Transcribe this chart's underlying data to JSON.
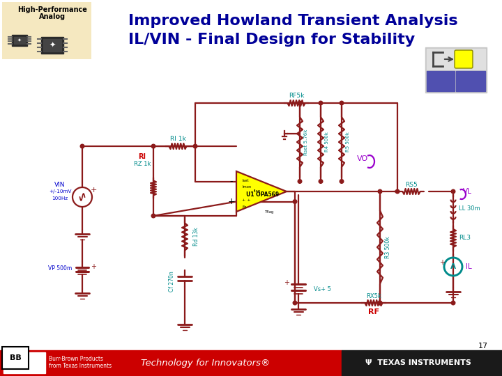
{
  "title_line1": "Improved Howland Transient Analysis",
  "title_line2": "IL/VIN - Final Design for Stability",
  "title_color": "#000099",
  "background_color": "#ffffff",
  "wire_color": "#8b1a1a",
  "green": "#008b8b",
  "red_label": "#cc0000",
  "purple": "#9900cc",
  "blue_label": "#0000cc",
  "opamp_fill": "#ffff00",
  "footer_red": "#cc0000",
  "footer_dark": "#1a1a1a",
  "page_num": "17"
}
